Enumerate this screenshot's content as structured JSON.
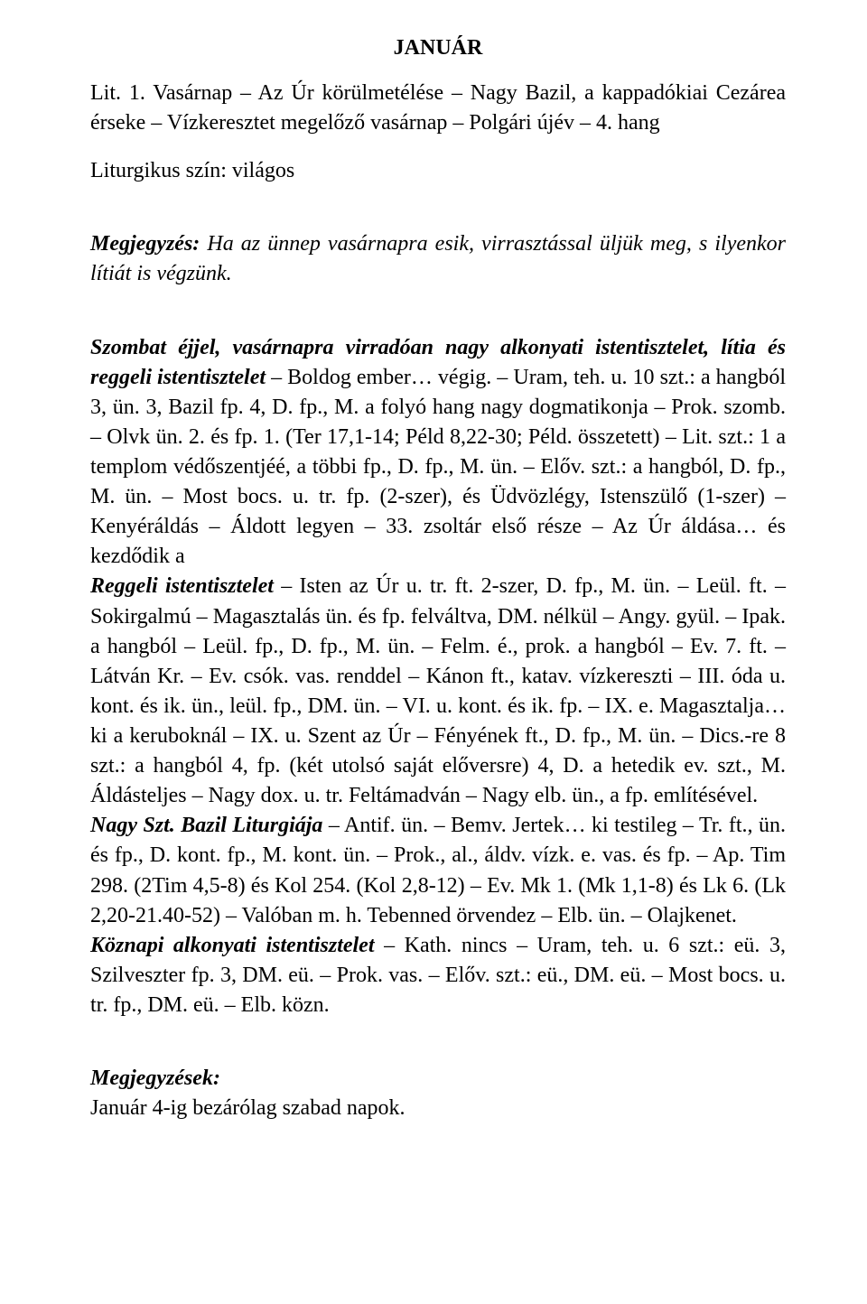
{
  "doc": {
    "title": "JANUÁR",
    "p1_a": "Lit. 1. Vasárnap – Az Úr körülmetélése – Nagy Bazil, a kappadókiai Cezárea érseke – Vízkeresztet megelőző vasárnap – Polgári újév – 4. hang",
    "p2": "Liturgikus szín: világos",
    "p3_label": "Megjegyzés:",
    "p3_body": " Ha az ünnep vasárnapra esik, virrasztással üljük meg, s ilyenkor lítiát is végzünk.",
    "p4_lead": "Szombat éjjel, vasárnapra virradóan nagy alkonyati istentisztelet, lítia és reggeli istentisztelet",
    "p4_rest": " – Boldog ember… végig. – Uram, teh. u. 10 szt.: a hangból 3, ün. 3, Bazil fp. 4, D. fp., M. a folyó hang nagy dogmatikonja – Prok. szomb. – Olvk ün. 2. és fp. 1. (Ter 17,1-14; Péld 8,22-30; Péld. összetett) – Lit. szt.: 1 a templom védőszentjéé, a többi fp., D. fp., M. ün. – Előv. szt.: a hangból, D. fp., M. ün. – Most bocs. u. tr. fp. (2-szer), és Üdvözlégy, Istenszülő (1-szer) – Kenyéráldás – Áldott legyen – 33. zsoltár első része – Az Úr áldása… és kezdődik a",
    "p5_lead": "Reggeli istentisztelet",
    "p5_rest": " – Isten az Úr u. tr. ft. 2-szer, D. fp., M. ün. – Leül. ft. – Sokirgalmú – Magasztalás ün. és fp. felváltva, DM. nélkül – Angy. gyül. – Ipak. a hangból – Leül. fp., D. fp., M. ün. – Felm. é., prok. a hangból – Ev. 7. ft. – Látván Kr. – Ev. csók. vas. renddel – Kánon ft., katav. vízkereszti – III. óda u. kont. és ik. ün., leül. fp., DM. ün. – VI. u. kont. és ik. fp. – IX. e. Magasztalja… ki a keruboknál – IX. u. Szent az Úr – Fényének ft., D. fp., M. ün. – Dics.-re 8 szt.: a hangból 4, fp. (két utolsó saját előversre) 4, D. a hetedik ev. szt., M. Áldásteljes – Nagy dox. u. tr. Feltámadván – Nagy elb. ün., a fp. említésével.",
    "p6_lead": "Nagy Szt. Bazil Liturgiája",
    "p6_rest": " – Antif. ün. – Bemv. Jertek… ki testileg – Tr. ft., ün. és fp., D. kont. fp., M. kont. ün. – Prok., al., áldv. vízk. e. vas. és fp. – Ap. Tim 298. (2Tim 4,5-8) és Kol 254. (Kol 2,8-12) – Ev. Mk 1. (Mk 1,1-8) és Lk 6. (Lk 2,20-21.40-52) – Valóban m. h. Tebenned örvendez – Elb. ün. – Olajkenet.",
    "p7_lead": "Köznapi alkonyati istentisztelet",
    "p7_rest": " – Kath. nincs – Uram, teh. u. 6 szt.: eü. 3, Szilveszter fp. 3, DM. eü. – Prok. vas. – Előv. szt.: eü., DM. eü. – Most bocs. u. tr. fp., DM. eü. – Elb. közn.",
    "p8_lead": "Megjegyzések:",
    "p8_body": "Január 4-ig bezárólag szabad napok.",
    "font_family": "Times New Roman",
    "font_size_pt": 18,
    "text_color": "#000000",
    "background_color": "#ffffff"
  }
}
